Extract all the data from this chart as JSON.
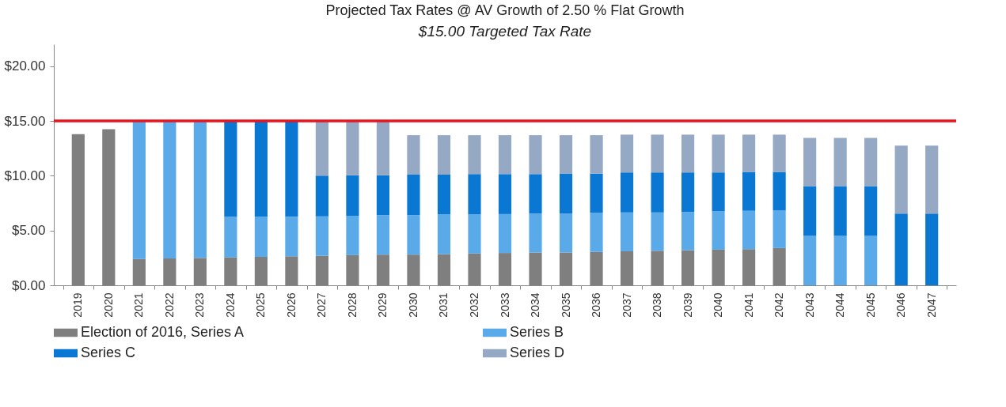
{
  "chart_data": {
    "type": "bar",
    "stacked": true,
    "title": "Projected Tax Rates @ AV Growth of 2.50 % Flat Growth",
    "subtitle": "$15.00  Targeted Tax Rate",
    "categories": [
      "2019",
      "2020",
      "2021",
      "2022",
      "2023",
      "2024",
      "2025",
      "2026",
      "2027",
      "2028",
      "2029",
      "2030",
      "2031",
      "2032",
      "2033",
      "2034",
      "2035",
      "2036",
      "2037",
      "2038",
      "2039",
      "2040",
      "2041",
      "2042",
      "2043",
      "2044",
      "2045",
      "2046",
      "2047"
    ],
    "series": [
      {
        "name": "Election of 2016, Series A",
        "color": "#7f7f7f",
        "values": [
          13.8,
          14.25,
          2.4,
          2.45,
          2.5,
          2.55,
          2.6,
          2.65,
          2.7,
          2.75,
          2.8,
          2.8,
          2.85,
          2.9,
          2.95,
          3.0,
          3.0,
          3.05,
          3.1,
          3.15,
          3.2,
          3.25,
          3.3,
          3.4,
          null,
          null,
          null,
          null,
          null
        ]
      },
      {
        "name": "Series B",
        "color": "#5aaaea",
        "values": [
          null,
          null,
          12.6,
          12.55,
          12.5,
          3.7,
          3.65,
          3.6,
          3.6,
          3.6,
          3.6,
          3.6,
          3.6,
          3.55,
          3.55,
          3.55,
          3.55,
          3.55,
          3.55,
          3.5,
          3.5,
          3.5,
          3.5,
          3.45,
          4.5,
          4.5,
          4.5,
          null,
          null
        ]
      },
      {
        "name": "Series C",
        "color": "#0a78d2",
        "values": [
          null,
          null,
          null,
          null,
          null,
          8.75,
          8.75,
          8.75,
          3.7,
          3.7,
          3.65,
          3.7,
          3.65,
          3.7,
          3.65,
          3.6,
          3.65,
          3.6,
          3.65,
          3.65,
          3.6,
          3.55,
          3.55,
          3.5,
          4.55,
          4.55,
          4.55,
          6.55,
          6.55
        ]
      },
      {
        "name": "Series D",
        "color": "#95a8c4",
        "values": [
          null,
          null,
          null,
          null,
          null,
          null,
          null,
          null,
          5.0,
          4.95,
          4.95,
          3.6,
          3.6,
          3.55,
          3.55,
          3.55,
          3.5,
          3.5,
          3.45,
          3.45,
          3.45,
          3.45,
          3.4,
          3.4,
          4.4,
          4.4,
          4.4,
          6.2,
          6.2
        ]
      }
    ],
    "ylim": [
      0,
      22
    ],
    "yticks": [
      {
        "value": 0,
        "label": "$0.00"
      },
      {
        "value": 5,
        "label": "$5.00"
      },
      {
        "value": 10,
        "label": "$10.00"
      },
      {
        "value": 15,
        "label": "$15.00"
      },
      {
        "value": 20,
        "label": "$20.00"
      }
    ],
    "ref_lines": [
      {
        "axis": "y",
        "value": 15,
        "color": "#e8151f"
      }
    ],
    "legend": "bottom"
  }
}
